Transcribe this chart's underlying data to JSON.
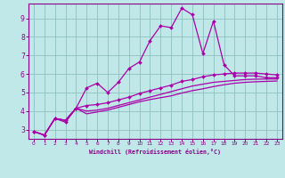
{
  "title": "",
  "xlabel": "Windchill (Refroidissement éolien,°C)",
  "bg_color": "#c0e8e8",
  "grid_color": "#90c0c0",
  "line_color": "#aa00aa",
  "spine_color": "#880088",
  "xlim": [
    -0.5,
    23.5
  ],
  "ylim": [
    2.5,
    9.8
  ],
  "xticks": [
    0,
    1,
    2,
    3,
    4,
    5,
    6,
    7,
    8,
    9,
    10,
    11,
    12,
    13,
    14,
    15,
    16,
    17,
    18,
    19,
    20,
    21,
    22,
    23
  ],
  "yticks": [
    3,
    4,
    5,
    6,
    7,
    8,
    9
  ],
  "x": [
    0,
    1,
    2,
    3,
    4,
    5,
    6,
    7,
    8,
    9,
    10,
    11,
    12,
    13,
    14,
    15,
    16,
    17,
    18,
    19,
    20,
    21,
    22,
    23
  ],
  "line1": [
    2.9,
    2.7,
    3.6,
    3.4,
    4.15,
    5.25,
    5.5,
    5.0,
    5.55,
    6.3,
    6.65,
    7.8,
    8.6,
    8.5,
    9.55,
    9.2,
    7.1,
    8.85,
    6.5,
    5.9,
    5.9,
    5.9,
    5.8,
    5.8
  ],
  "line2": [
    2.9,
    2.7,
    3.6,
    3.5,
    4.15,
    4.3,
    4.35,
    4.45,
    4.6,
    4.75,
    4.95,
    5.1,
    5.25,
    5.4,
    5.6,
    5.7,
    5.85,
    5.95,
    6.0,
    6.05,
    6.05,
    6.05,
    6.0,
    5.95
  ],
  "line3": [
    2.9,
    2.7,
    3.6,
    3.5,
    4.15,
    4.0,
    4.05,
    4.15,
    4.3,
    4.45,
    4.6,
    4.75,
    4.9,
    5.05,
    5.2,
    5.35,
    5.45,
    5.55,
    5.6,
    5.65,
    5.7,
    5.72,
    5.73,
    5.73
  ],
  "line4": [
    2.9,
    2.7,
    3.6,
    3.5,
    4.15,
    3.85,
    3.95,
    4.05,
    4.2,
    4.35,
    4.5,
    4.62,
    4.72,
    4.82,
    4.97,
    5.1,
    5.2,
    5.32,
    5.42,
    5.5,
    5.55,
    5.58,
    5.6,
    5.62
  ]
}
